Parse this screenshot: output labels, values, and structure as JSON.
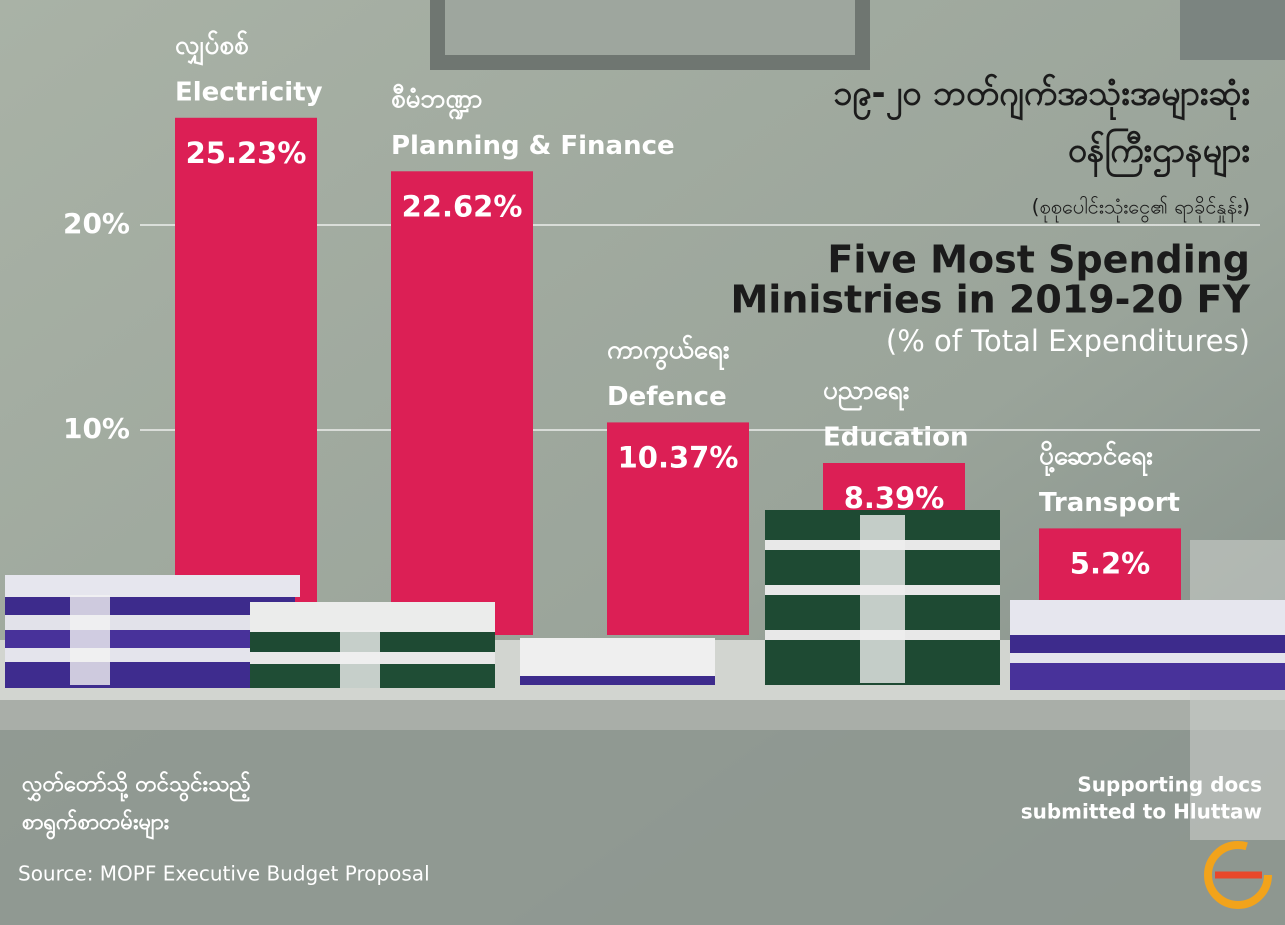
{
  "chart_data": {
    "type": "bar",
    "title_my": [
      "၁၉-၂၀ ဘတ်ဂျက်အသုံးအများဆုံး",
      "ဝန်ကြီးဌာနများ"
    ],
    "subtitle_my": "(စုစုပေါင်းသုံးငွေ၏ ရာခိုင်နှုန်း)",
    "title": [
      "Five Most Spending",
      "Ministries in 2019-20 FY"
    ],
    "subtitle": "(% of Total Expenditures)",
    "categories": [
      "Electricity",
      "Planning & Finance",
      "Defence",
      "Education",
      "Transport"
    ],
    "categories_my": [
      "လျှပ်စစ်",
      "စီမံဘဏ္ဍာ",
      "ကာကွယ်ရေး",
      "ပညာရေး",
      "ပို့ဆောင်ရေး"
    ],
    "values": [
      25.23,
      22.62,
      10.37,
      8.39,
      5.2
    ],
    "value_labels": [
      "25.23%",
      "22.62%",
      "10.37%",
      "8.39%",
      "5.2%"
    ],
    "color": "#dc1f55",
    "ylim": [
      0,
      30
    ],
    "yticks": [
      {
        "value": 20,
        "label": "20%"
      },
      {
        "value": 10,
        "label": "10%"
      }
    ],
    "grid": true
  },
  "notes": {
    "shelf_label_my": [
      "လွှတ်တော်သို့ တင်သွင်းသည့်",
      "စာရွက်စာတမ်းများ"
    ],
    "shelf_label_en": [
      "Supporting docs",
      "submitted to Hluttaw"
    ],
    "source": "Source: MOPF Executive Budget Proposal"
  }
}
